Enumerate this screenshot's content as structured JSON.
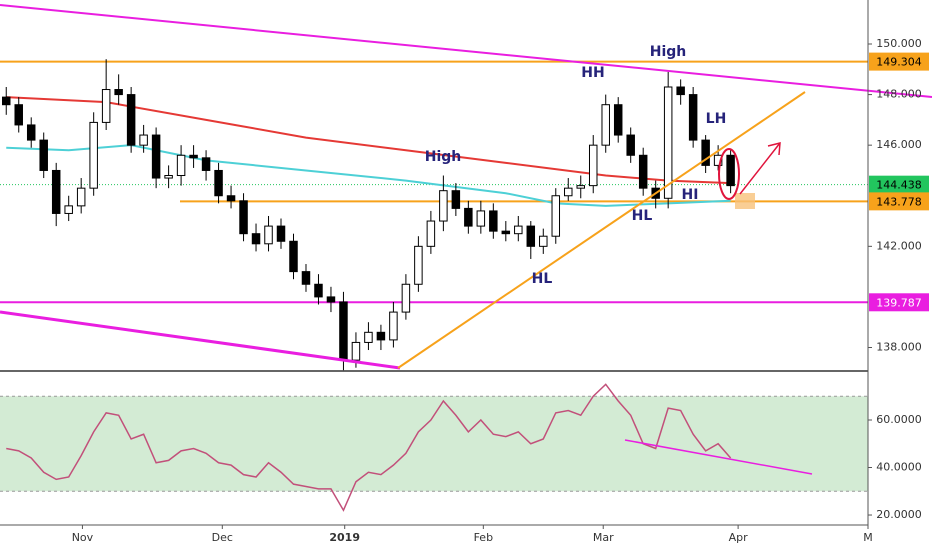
{
  "chart_data": [
    {
      "type": "candlestick",
      "open": [
        147.9,
        147.6,
        146.8,
        146.2,
        145.0,
        143.3,
        143.6,
        144.3,
        146.9,
        148.2,
        148.0,
        146.0,
        146.4,
        144.7,
        144.8,
        145.6,
        145.5,
        145.0,
        144.0,
        143.8,
        142.5,
        142.1,
        142.8,
        142.2,
        141.0,
        140.5,
        140.0,
        139.8,
        137.5,
        138.2,
        138.6,
        138.3,
        139.4,
        140.5,
        142.0,
        143.0,
        144.2,
        143.5,
        142.8,
        143.4,
        142.6,
        142.5,
        142.8,
        142.0,
        142.4,
        144.0,
        144.3,
        144.4,
        146.0,
        147.6,
        146.4,
        145.6,
        144.3,
        143.9,
        148.3,
        148.0,
        146.2,
        145.2,
        145.6
      ],
      "high": [
        148.3,
        147.9,
        147.1,
        146.5,
        145.3,
        144.0,
        144.7,
        147.3,
        149.4,
        148.8,
        148.3,
        146.8,
        146.7,
        145.2,
        146.0,
        146.0,
        145.8,
        145.3,
        144.4,
        144.1,
        142.9,
        143.2,
        143.1,
        142.5,
        141.3,
        140.9,
        140.4,
        140.2,
        138.6,
        139.0,
        138.9,
        139.8,
        140.9,
        142.4,
        143.4,
        144.8,
        144.5,
        143.8,
        143.8,
        143.7,
        143.0,
        143.2,
        143.0,
        142.7,
        144.3,
        144.7,
        144.8,
        146.4,
        148.0,
        147.9,
        146.7,
        145.9,
        144.6,
        148.9,
        148.6,
        148.3,
        146.4,
        146.0,
        145.8
      ],
      "low": [
        147.2,
        146.5,
        145.9,
        144.7,
        142.8,
        143.0,
        143.3,
        144.0,
        146.6,
        147.6,
        145.7,
        145.7,
        144.3,
        144.3,
        144.4,
        145.1,
        144.6,
        143.7,
        143.5,
        142.2,
        141.8,
        141.8,
        141.9,
        140.7,
        140.2,
        139.7,
        139.4,
        137.1,
        137.2,
        137.9,
        137.9,
        138.0,
        139.1,
        140.2,
        141.7,
        142.6,
        143.2,
        142.5,
        142.5,
        142.3,
        142.2,
        142.2,
        141.5,
        141.7,
        142.1,
        143.8,
        143.9,
        144.1,
        145.7,
        146.1,
        145.3,
        144.0,
        143.5,
        143.5,
        147.6,
        145.9,
        144.9,
        145.0,
        144.1
      ],
      "close": [
        147.6,
        146.8,
        146.2,
        145.0,
        143.3,
        143.6,
        144.3,
        146.9,
        148.2,
        148.0,
        146.0,
        146.4,
        144.7,
        144.8,
        145.6,
        145.5,
        145.0,
        144.0,
        143.8,
        142.5,
        142.1,
        142.8,
        142.2,
        141.0,
        140.5,
        140.0,
        139.8,
        137.5,
        138.2,
        138.6,
        138.3,
        139.4,
        140.5,
        142.0,
        143.0,
        144.2,
        143.5,
        142.8,
        143.4,
        142.6,
        142.5,
        142.8,
        142.0,
        142.4,
        144.0,
        144.3,
        144.4,
        146.0,
        147.6,
        146.4,
        145.6,
        144.3,
        143.9,
        148.3,
        148.0,
        146.2,
        145.2,
        145.6,
        144.4
      ],
      "up_color": "#ffffff",
      "down_color": "#000000",
      "xlim": [
        -0.5,
        69
      ],
      "xticks": [
        {
          "value": 6.1,
          "label": "Nov"
        },
        {
          "value": 17.3,
          "label": "Dec"
        },
        {
          "value": 27.1,
          "label": "2019"
        },
        {
          "value": 38.2,
          "label": "Feb"
        },
        {
          "value": 47.8,
          "label": "Mar"
        },
        {
          "value": 58.6,
          "label": "Apr"
        },
        {
          "value": 69,
          "label": "M"
        }
      ],
      "ylim": [
        137.11,
        151.74
      ],
      "yticks": [
        {
          "value": 138,
          "label": "138.000"
        },
        {
          "value": 142,
          "label": "142.000"
        },
        {
          "value": 146,
          "label": "146.000"
        },
        {
          "value": 148,
          "label": "148.000"
        },
        {
          "value": 150,
          "label": "150.000"
        }
      ],
      "series": [
        {
          "color": "#e53935",
          "x": [
            0,
            8,
            16,
            24,
            32,
            40,
            48,
            53,
            58
          ],
          "values": [
            147.9,
            147.7,
            147.0,
            146.3,
            145.8,
            145.3,
            144.8,
            144.6,
            144.5
          ]
        },
        {
          "color": "#4dd0d6",
          "x": [
            0,
            5,
            10,
            16,
            24,
            32,
            40,
            44,
            48,
            53,
            58
          ],
          "values": [
            145.9,
            145.8,
            146.0,
            145.4,
            145.0,
            144.6,
            144.1,
            143.7,
            143.6,
            143.7,
            143.8
          ]
        }
      ],
      "price_lines": [
        {
          "value": 149.304,
          "color": "#f7a21b",
          "text_color": "#000000"
        },
        {
          "value": 144.438,
          "color": "#22c55e",
          "text_color": "#000000",
          "dotted": true
        },
        {
          "value": 143.778,
          "color": "#f7a21b",
          "text_color": "#000000"
        },
        {
          "value": 139.787,
          "color": "#e91ee0",
          "text_color": "#ffffff"
        }
      ],
      "annotations": [
        "High",
        "HH",
        "LH",
        "High",
        "HI",
        "HL",
        "HL"
      ]
    },
    {
      "type": "line",
      "values": [
        48,
        47,
        44,
        38,
        35,
        36,
        45,
        55,
        63,
        62,
        52,
        54,
        42,
        43,
        47,
        48,
        46,
        42,
        41,
        37,
        36,
        42,
        38,
        33,
        32,
        31,
        31,
        22,
        34,
        38,
        37,
        41,
        46,
        55,
        60,
        68,
        62,
        55,
        60,
        54,
        53,
        55,
        50,
        52,
        63,
        64,
        62,
        70,
        75,
        68,
        62,
        50,
        48,
        65,
        64,
        54,
        47,
        50,
        44
      ],
      "color": "#c2507a",
      "xlim": [
        -0.5,
        69
      ],
      "ylim": [
        15.8,
        80.2
      ],
      "yticks": [
        {
          "value": 20,
          "label": "20.0000"
        },
        {
          "value": 40,
          "label": "40.0000"
        },
        {
          "value": 60,
          "label": "60.0000"
        }
      ],
      "band": [
        30,
        70
      ],
      "band_color": "#c8e6c9"
    }
  ]
}
